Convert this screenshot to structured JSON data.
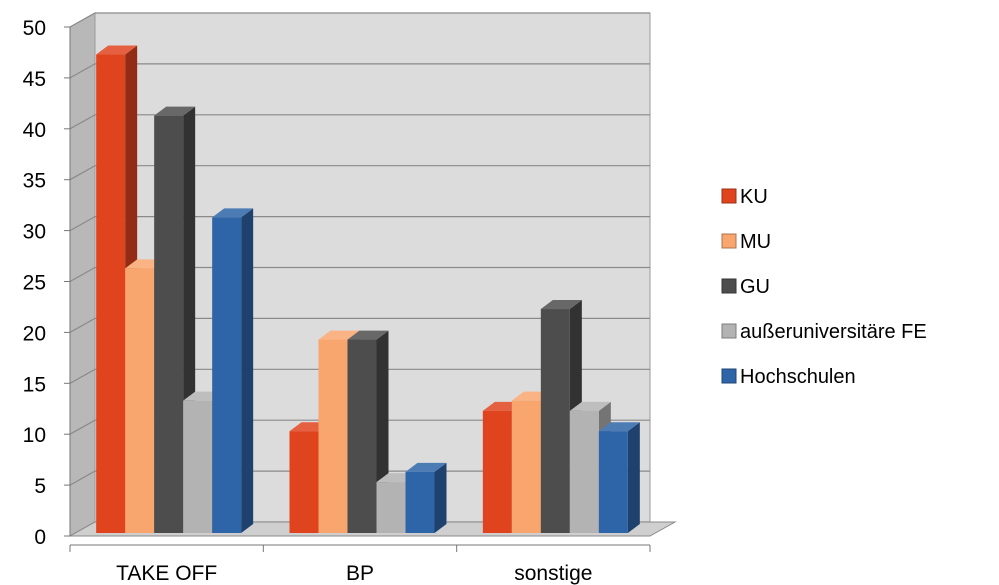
{
  "chart_data": {
    "type": "bar",
    "title": "",
    "xlabel": "",
    "ylabel": "",
    "ylim": [
      0,
      50
    ],
    "y_ticks": [
      "0",
      "5",
      "10",
      "15",
      "20",
      "25",
      "30",
      "35",
      "40",
      "45",
      "50"
    ],
    "categories": [
      "TAKE OFF",
      "BP",
      "sonstige"
    ],
    "series": [
      {
        "name": "KU",
        "values": [
          47,
          10,
          12
        ],
        "color": "#e0441e"
      },
      {
        "name": "MU",
        "values": [
          26,
          19,
          13
        ],
        "color": "#f9a56e"
      },
      {
        "name": "GU",
        "values": [
          41,
          19,
          22
        ],
        "color": "#4d4d4d"
      },
      {
        "name": "außeruniversitäre FE",
        "values": [
          13,
          5,
          12
        ],
        "color": "#b3b3b3"
      },
      {
        "name": "Hochschulen",
        "values": [
          31,
          6,
          10
        ],
        "color": "#2e65a8"
      }
    ],
    "grid": true,
    "legend_position": "right",
    "style": "3d-clustered-column"
  }
}
